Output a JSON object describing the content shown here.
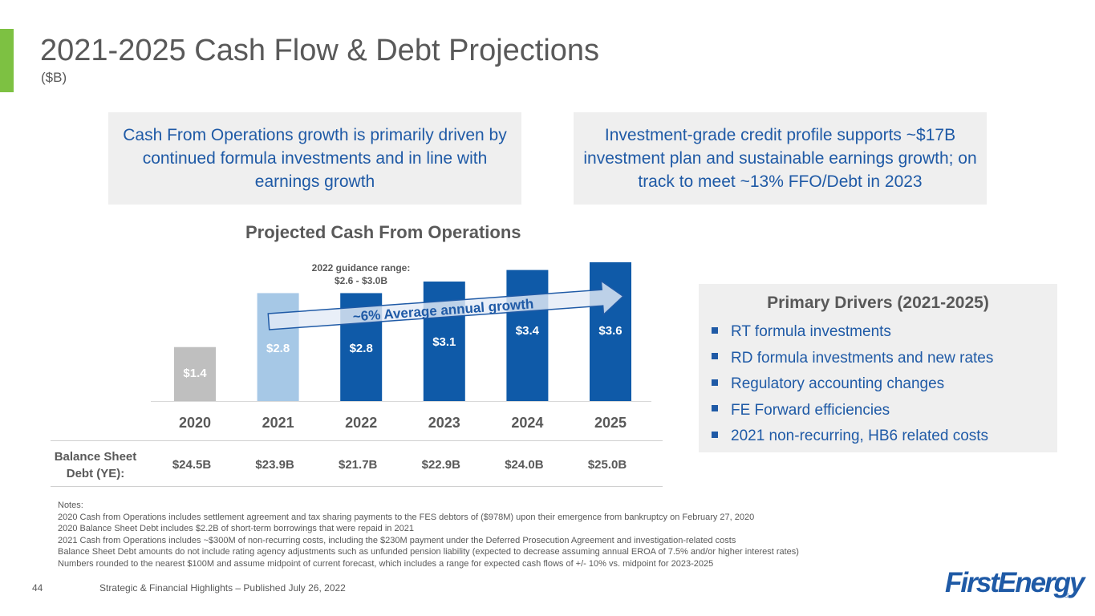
{
  "slide": {
    "title": "2021-2025 Cash Flow & Debt Projections",
    "subtitle": "($B)",
    "page_number": "44",
    "footer": "Strategic & Financial Highlights – Published July 26, 2022",
    "logo_text": "FirstEnergy",
    "logo_reg": "®"
  },
  "callouts": {
    "left": "Cash From Operations growth is primarily driven by continued formula investments and in line with earnings growth",
    "right": "Investment-grade credit profile supports ~$17B investment plan and sustainable earnings growth; on track to meet ~13% FFO/Debt in 2023"
  },
  "chart_data": {
    "type": "bar",
    "title": "Projected Cash From Operations",
    "categories": [
      "2020",
      "2021",
      "2022",
      "2023",
      "2024",
      "2025"
    ],
    "values": [
      1.4,
      2.8,
      2.8,
      3.1,
      3.4,
      3.6
    ],
    "value_labels": [
      "$1.4",
      "$2.8",
      "$2.8",
      "$3.1",
      "$3.4",
      "$3.6"
    ],
    "bar_colors": [
      "#bfbfbf",
      "#a6c8e6",
      "#0f5aa8",
      "#0f5aa8",
      "#0f5aa8",
      "#0f5aa8"
    ],
    "label_colors": [
      "#ffffff",
      "#ffffff",
      "#ffffff",
      "#ffffff",
      "#ffffff",
      "#ffffff"
    ],
    "ylim": [
      0,
      3.6
    ],
    "annotation": {
      "lines": [
        "2022 guidance range:",
        "$2.6 - $3.0B"
      ]
    },
    "growth_label": "~6% Average annual growth",
    "debt_row_label": [
      "Balance Sheet",
      "Debt (YE):"
    ],
    "debt_values": [
      "$24.5B",
      "$23.9B",
      "$21.7B",
      "$22.9B",
      "$24.0B",
      "$25.0B"
    ]
  },
  "drivers": {
    "title": "Primary Drivers (2021-2025)",
    "items": [
      "RT formula investments",
      "RD formula investments and new rates",
      "Regulatory accounting changes",
      "FE Forward efficiencies",
      "2021 non-recurring, HB6 related costs"
    ]
  },
  "notes": [
    "Notes:",
    "2020 Cash from Operations includes settlement agreement and tax sharing payments to the FES debtors of ($978M) upon their emergence from bankruptcy on February 27, 2020",
    "2020 Balance Sheet Debt includes $2.2B of short-term borrowings that were repaid in 2021",
    "2021 Cash from Operations includes ~$300M of non-recurring costs, including the $230M payment under the Deferred Prosecution Agreement and investigation-related costs",
    "Balance Sheet Debt amounts do not include rating agency adjustments such as unfunded pension liability (expected to decrease assuming annual EROA of 7.5% and/or higher interest rates)",
    "Numbers rounded to the nearest $100M and assume midpoint of current forecast, which includes a range for expected cash flows of +/- 10% vs. midpoint for 2023-2025"
  ],
  "colors": {
    "accent": "#7dc142",
    "blue": "#1f5aa6",
    "gray_text": "#595959",
    "callout_bg": "#efefef"
  }
}
